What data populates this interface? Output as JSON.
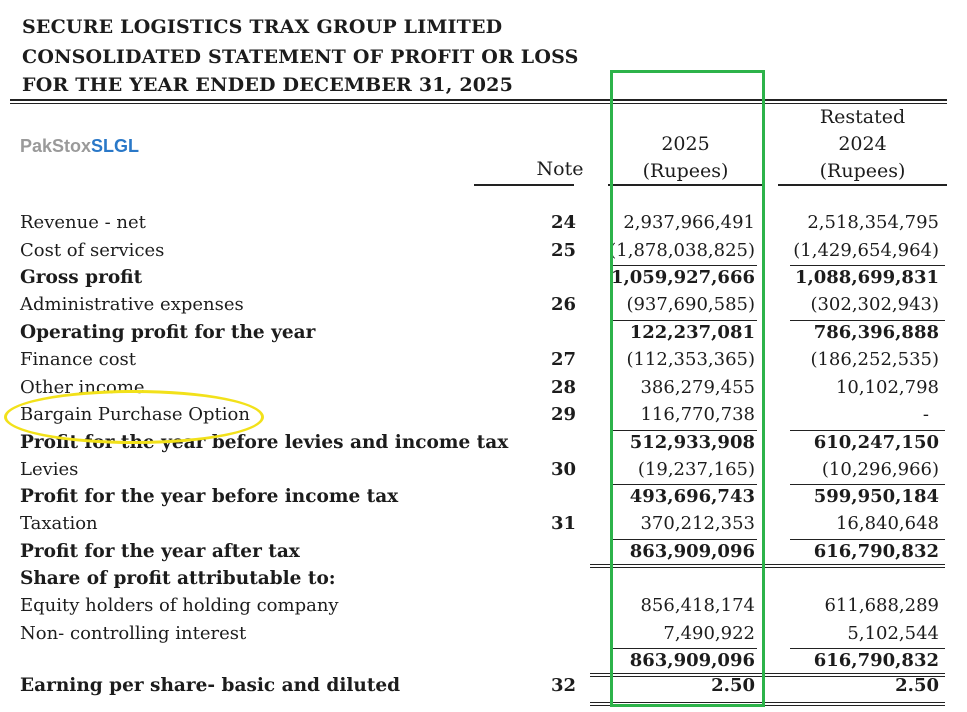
{
  "header": {
    "company": "SECURE LOGISTICS TRAX GROUP LIMITED",
    "statement": "CONSOLIDATED STATEMENT OF PROFIT OR LOSS",
    "period": "FOR THE YEAR ENDED DECEMBER 31, 2025"
  },
  "watermark": {
    "part1": "PakStox",
    "part2": "SLGL"
  },
  "columns": {
    "note": "Note",
    "current": {
      "year": "2025",
      "unit": "(Rupees)"
    },
    "prior": {
      "restated": "Restated",
      "year": "2024",
      "unit": "(Rupees)"
    }
  },
  "rows": [
    {
      "label": "Revenue - net",
      "note": "24",
      "y2025": "2,937,966,491",
      "y2024": "2,518,354,795",
      "bold": false
    },
    {
      "label": "Cost of services",
      "note": "25",
      "y2025": "(1,878,038,825)",
      "y2024": "(1,429,654,964)",
      "bold": false
    },
    {
      "label": "Gross profit",
      "note": "",
      "y2025": "1,059,927,666",
      "y2024": "1,088,699,831",
      "bold": true
    },
    {
      "label": "Administrative expenses",
      "note": "26",
      "y2025": "(937,690,585)",
      "y2024": "(302,302,943)",
      "bold": false
    },
    {
      "label": "Operating profit for the year",
      "note": "",
      "y2025": "122,237,081",
      "y2024": "786,396,888",
      "bold": true
    },
    {
      "label": "Finance cost",
      "note": "27",
      "y2025": "(112,353,365)",
      "y2024": "(186,252,535)",
      "bold": false
    },
    {
      "label": "Other income",
      "note": "28",
      "y2025": "386,279,455",
      "y2024": "10,102,798",
      "bold": false
    },
    {
      "label": "Bargain Purchase Option",
      "note": "29",
      "y2025": "116,770,738",
      "y2024": "-",
      "bold": false
    },
    {
      "label": "Profit for the year before levies and income tax",
      "note": "",
      "y2025": "512,933,908",
      "y2024": "610,247,150",
      "bold": true
    },
    {
      "label": "Levies",
      "note": "30",
      "y2025": "(19,237,165)",
      "y2024": "(10,296,966)",
      "bold": false
    },
    {
      "label": "Profit for the year before income tax",
      "note": "",
      "y2025": "493,696,743",
      "y2024": "599,950,184",
      "bold": true
    },
    {
      "label": "Taxation",
      "note": "31",
      "y2025": "370,212,353",
      "y2024": "16,840,648",
      "bold": false
    },
    {
      "label": "Profit for the year after tax",
      "note": "",
      "y2025": "863,909,096",
      "y2024": "616,790,832",
      "bold": true
    },
    {
      "label": "Share of profit attributable to:",
      "note": "",
      "y2025": "",
      "y2024": "",
      "bold": true
    },
    {
      "label": "Equity holders of holding company",
      "note": "",
      "y2025": "856,418,174",
      "y2024": "611,688,289",
      "bold": false
    },
    {
      "label": "Non- controlling interest",
      "note": "",
      "y2025": "7,490,922",
      "y2024": "5,102,544",
      "bold": false
    },
    {
      "label": "",
      "note": "",
      "y2025": "863,909,096",
      "y2024": "616,790,832",
      "bold": true
    },
    {
      "label": "Earning per share- basic and diluted",
      "note": "32",
      "y2025": "2.50",
      "y2024": "2.50",
      "bold": true
    }
  ],
  "annotations": {
    "box_color": "#2db34a",
    "ellipse_color": "#f2e11a"
  }
}
